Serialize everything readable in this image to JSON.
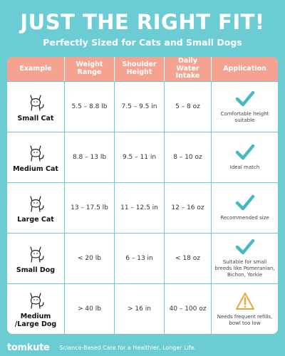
{
  "header": {
    "title": "JUST THE RIGHT FIT!",
    "subtitle": "Perfectly Sized for Cats and Small Dogs"
  },
  "table": {
    "columns": [
      "Example",
      "Weight Range",
      "Shoulder Height",
      "Daily Water Intake",
      "Application"
    ],
    "rows": [
      [
        "Small Cat",
        "5.5 – 8.8 lb",
        "7.5 – 9.5 in",
        "5 – 8 oz",
        "Comfortable height suitable"
      ],
      [
        "Medium Cat",
        "8.8 – 13 lb",
        "9.5 – 11 in",
        "8 – 10 oz",
        "Ideal match"
      ],
      [
        "Large Cat",
        "13 – 17.5 lb",
        "11 – 12.5 in",
        "12 – 16 oz",
        "Recommended size"
      ],
      [
        "Small Dog",
        "< 20 lb",
        "6 – 13 in",
        "< 18 oz",
        "Suitable for small breeds like Pomeranian, Bichon, Yorkie"
      ],
      [
        "Medium /Large Dog",
        "> 40 lb",
        "> 16 in",
        "40 – 100 oz",
        "Needs frequent refills, bowl too low"
      ]
    ]
  },
  "footer": {
    "logo": "tomkute",
    "tagline": "Science-Based Care for a Healthier, Longer Life."
  }
}
